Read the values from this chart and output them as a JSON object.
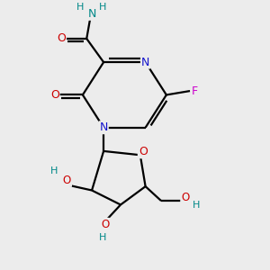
{
  "bg_color": "#ececec",
  "atom_colors": {
    "C": "#000000",
    "N": "#1414cc",
    "O": "#cc0000",
    "F": "#cc00cc",
    "H": "#008888"
  },
  "bond_color": "#000000",
  "bond_width": 1.6,
  "figsize": [
    3.0,
    3.0
  ],
  "dpi": 100
}
